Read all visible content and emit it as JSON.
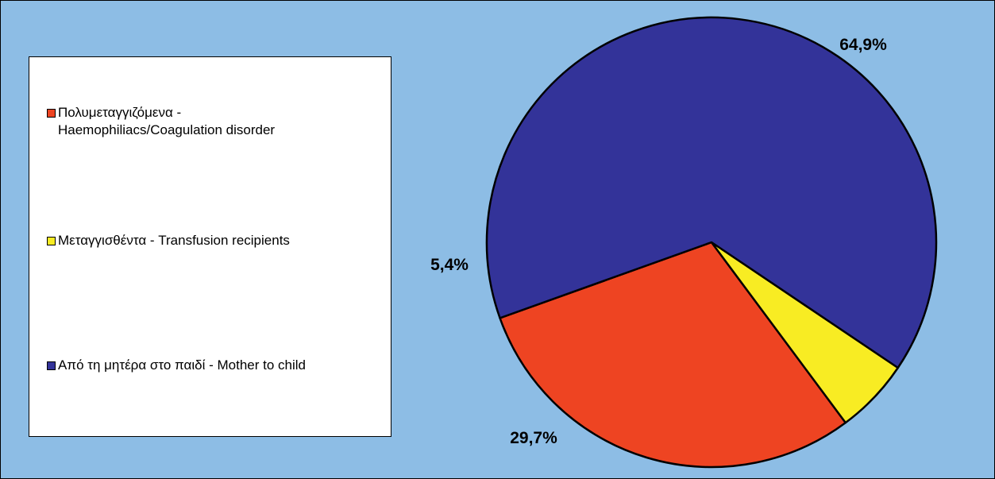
{
  "chart_data": {
    "type": "pie",
    "slices": [
      {
        "label": "Πολυμεταγγιζόμενα - Haemophiliacs/Coagulation disorder",
        "label_line1": "Πολυμεταγγιζόμενα -",
        "label_line2": "Haemophiliacs/Coagulation disorder",
        "value": 29.7,
        "value_label": "29,7%",
        "color": "#ee4422"
      },
      {
        "label": "Μεταγγισθέντα - Transfusion recipients",
        "value": 5.4,
        "value_label": "5,4%",
        "color": "#f8ec23"
      },
      {
        "label": "Από τη μητέρα στο παιδί - Mother to child",
        "value": 64.9,
        "value_label": "64,9%",
        "color": "#333399"
      }
    ],
    "legend_position": "left",
    "background_color": "#8dbde5"
  }
}
